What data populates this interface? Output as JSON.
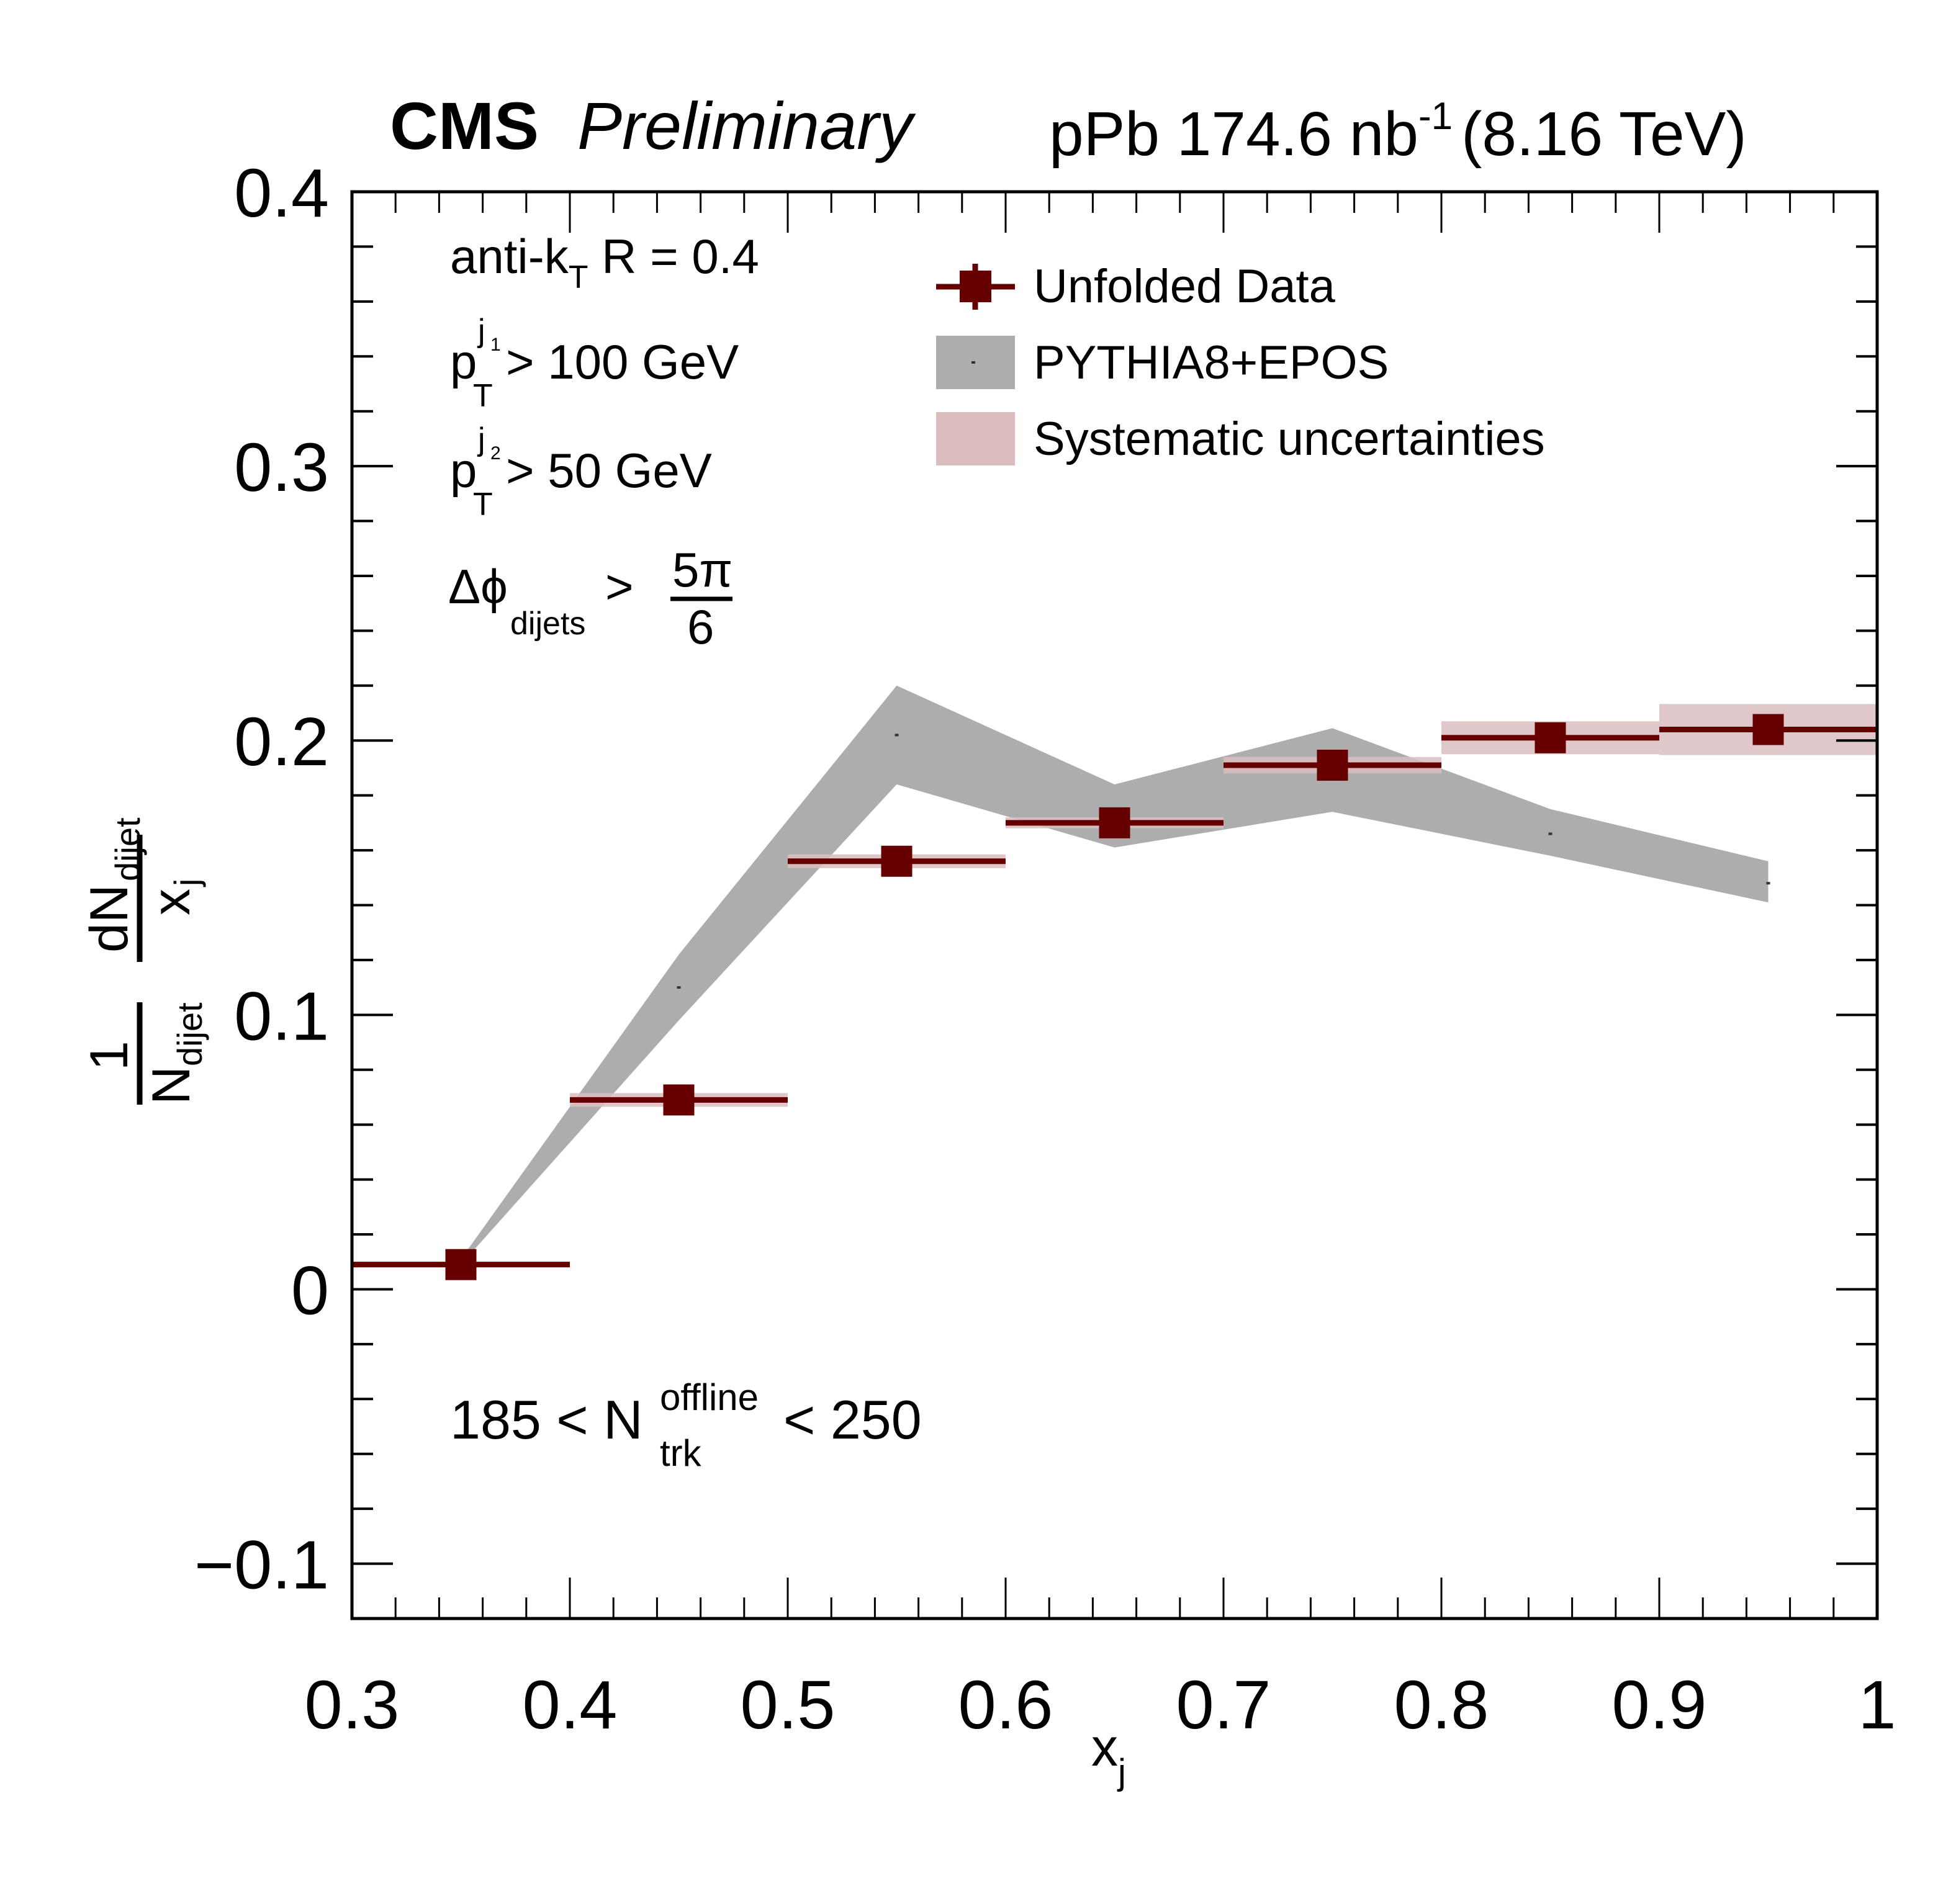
{
  "header": {
    "experiment": "CMS",
    "status": "Preliminary",
    "lumi_prefix": "pPb 174.6 nb",
    "lumi_exp": "-1",
    "energy": "(8.16 TeV)"
  },
  "annotations": {
    "algo_main": "anti-k",
    "algo_sub": "T",
    "algo_rest": " R = 0.4",
    "pt1_p": "p",
    "pt1_sub": "T",
    "pt1_sup": "j",
    "pt1_supsub": "1",
    "pt1_rest": " > 100 GeV",
    "pt2_p": "p",
    "pt2_sub": "T",
    "pt2_sup": "j",
    "pt2_supsub": "2",
    "pt2_rest": " > 50 GeV",
    "dphi_main": "Δϕ",
    "dphi_sub": "dijets",
    "dphi_gt": " >",
    "dphi_num": "5π",
    "dphi_den": "6",
    "ntrk_lo": "185 < N",
    "ntrk_sup": "offline",
    "ntrk_sub": "trk",
    "ntrk_hi": " < 250"
  },
  "chart_data": {
    "type": "scatter",
    "title": "",
    "xlabel": "x",
    "xlabel_sub": "j",
    "ylabel": {
      "frac1_num": "1",
      "frac1_den": "N",
      "frac1_den_sub": "dijet",
      "frac2_num": "dN",
      "frac2_num_sub": "dijet",
      "frac2_den": "x",
      "frac2_den_sub": "j"
    },
    "xlim": [
      0.3,
      1.0
    ],
    "ylim": [
      -0.12,
      0.4
    ],
    "xticks": [
      0.3,
      0.4,
      0.5,
      0.6,
      0.7,
      0.8,
      0.9,
      1.0
    ],
    "xtick_labels": [
      "0.3",
      "0.4",
      "0.5",
      "0.6",
      "0.7",
      "0.8",
      "0.9",
      "1"
    ],
    "yticks": [
      -0.1,
      0,
      0.1,
      0.2,
      0.3,
      0.4
    ],
    "ytick_labels": [
      "−0.1",
      "0",
      "0.1",
      "0.2",
      "0.3",
      "0.4"
    ],
    "grid": false,
    "legend_position": "top-right",
    "legend": [
      {
        "label": "Unfolded Data",
        "kind": "marker"
      },
      {
        "label": "PYTHIA8+EPOS",
        "kind": "band"
      },
      {
        "label": "Systematic uncertainties",
        "kind": "box"
      }
    ],
    "colors": {
      "data": "#660000",
      "syst": "#dbbdbf",
      "model": "#adadad",
      "model_point": "#333333"
    },
    "series": [
      {
        "name": "Unfolded Data",
        "bins": [
          [
            0.3,
            0.4
          ],
          [
            0.4,
            0.5
          ],
          [
            0.5,
            0.6
          ],
          [
            0.6,
            0.7
          ],
          [
            0.7,
            0.8
          ],
          [
            0.8,
            0.9
          ],
          [
            0.9,
            1.0
          ]
        ],
        "x": [
          0.35,
          0.45,
          0.55,
          0.65,
          0.75,
          0.85,
          0.95
        ],
        "y": [
          0.009,
          0.069,
          0.156,
          0.17,
          0.191,
          0.201,
          0.204
        ],
        "syst": [
          0.001,
          0.0025,
          0.0025,
          0.002,
          0.003,
          0.006,
          0.0093
        ]
      },
      {
        "name": "PYTHIA8+EPOS",
        "x": [
          0.35,
          0.45,
          0.55,
          0.65,
          0.75,
          0.85,
          0.95
        ],
        "y": [
          0.01,
          0.11,
          0.202,
          0.172,
          0.19,
          0.166,
          0.148
        ],
        "upper": [
          0.011,
          0.122,
          0.22,
          0.184,
          0.2045,
          0.175,
          0.156
        ],
        "lower": [
          0.009,
          0.098,
          0.184,
          0.161,
          0.174,
          0.158,
          0.141
        ]
      }
    ]
  }
}
